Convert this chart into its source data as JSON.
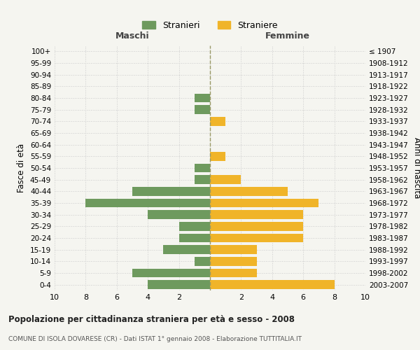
{
  "age_groups": [
    "100+",
    "95-99",
    "90-94",
    "85-89",
    "80-84",
    "75-79",
    "70-74",
    "65-69",
    "60-64",
    "55-59",
    "50-54",
    "45-49",
    "40-44",
    "35-39",
    "30-34",
    "25-29",
    "20-24",
    "15-19",
    "10-14",
    "5-9",
    "0-4"
  ],
  "birth_years": [
    "≤ 1907",
    "1908-1912",
    "1913-1917",
    "1918-1922",
    "1923-1927",
    "1928-1932",
    "1933-1937",
    "1938-1942",
    "1943-1947",
    "1948-1952",
    "1953-1957",
    "1958-1962",
    "1963-1967",
    "1968-1972",
    "1973-1977",
    "1978-1982",
    "1983-1987",
    "1988-1992",
    "1993-1997",
    "1998-2002",
    "2003-2007"
  ],
  "maschi": [
    0,
    0,
    0,
    0,
    1,
    1,
    0,
    0,
    0,
    0,
    1,
    1,
    5,
    8,
    4,
    2,
    2,
    3,
    1,
    5,
    4
  ],
  "femmine": [
    0,
    0,
    0,
    0,
    0,
    0,
    1,
    0,
    0,
    1,
    0,
    2,
    5,
    7,
    6,
    6,
    6,
    3,
    3,
    3,
    8
  ],
  "male_color": "#6e9a5e",
  "female_color": "#f0b429",
  "bg_color": "#f5f5f0",
  "grid_color": "#cccccc",
  "title": "Popolazione per cittadinanza straniera per età e sesso - 2008",
  "subtitle": "COMUNE DI ISOLA DOVARESE (CR) - Dati ISTAT 1° gennaio 2008 - Elaborazione TUTTITALIA.IT",
  "xlabel_left": "Maschi",
  "xlabel_right": "Femmine",
  "ylabel_left": "Fasce di età",
  "ylabel_right": "Anni di nascita",
  "legend_male": "Stranieri",
  "legend_female": "Straniere",
  "xlim": 10,
  "xticklabels": [
    "10",
    "8",
    "6",
    "4",
    "2",
    "",
    "2",
    "4",
    "6",
    "8",
    "10"
  ]
}
